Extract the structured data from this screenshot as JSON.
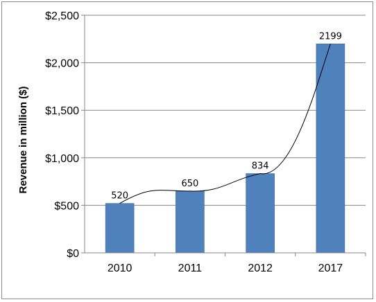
{
  "chart_data": {
    "type": "bar",
    "title": "",
    "xlabel": "",
    "ylabel": "Revenue in million ($)",
    "categories": [
      "2010",
      "2011",
      "2012",
      "2017"
    ],
    "values": [
      520,
      650,
      834,
      2199
    ],
    "data_labels": [
      "520",
      "650",
      "834",
      "2199"
    ],
    "ylim": [
      0,
      2500
    ],
    "y_ticks": [
      0,
      500,
      1000,
      1500,
      2000,
      2500
    ],
    "y_tick_labels": [
      "$0",
      "$500",
      "$1,000",
      "$1,500",
      "$2,000",
      "$2,500"
    ],
    "grid": true,
    "legend": "none",
    "trendline": "smooth curve through bar tops",
    "colors": {
      "bar": "#4f81bd",
      "bar_edge": "#3c6aa1",
      "grid": "#858585",
      "trendline": "#000000"
    }
  }
}
